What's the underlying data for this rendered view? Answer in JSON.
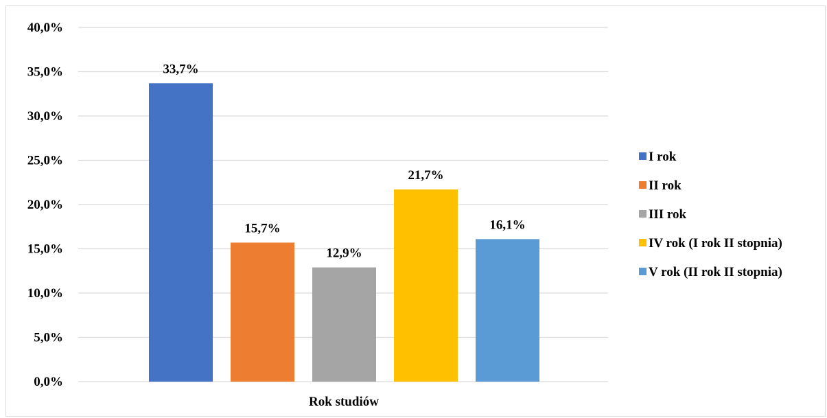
{
  "chart_data": {
    "type": "bar",
    "xlabel": "Rok studiów",
    "ylabel": "",
    "ylim": [
      0,
      40
    ],
    "y_ticks": [
      "0,0%",
      "5,0%",
      "10,0%",
      "15,0%",
      "20,0%",
      "25,0%",
      "30,0%",
      "35,0%",
      "40,0%"
    ],
    "y_tick_values": [
      0,
      5,
      10,
      15,
      20,
      25,
      30,
      35,
      40
    ],
    "grid": true,
    "legend_position": "right",
    "series": [
      {
        "name": "I rok",
        "value": 33.7,
        "label": "33,7%",
        "color": "#4472c4"
      },
      {
        "name": "II rok",
        "value": 15.7,
        "label": "15,7%",
        "color": "#ed7d31"
      },
      {
        "name": "III rok",
        "value": 12.9,
        "label": "12,9%",
        "color": "#a5a5a5"
      },
      {
        "name": "IV rok (I rok II stopnia)",
        "value": 21.7,
        "label": "21,7%",
        "color": "#ffc000"
      },
      {
        "name": "V rok (II rok II stopnia)",
        "value": 16.1,
        "label": "16,1%",
        "color": "#5b9bd5"
      }
    ]
  }
}
